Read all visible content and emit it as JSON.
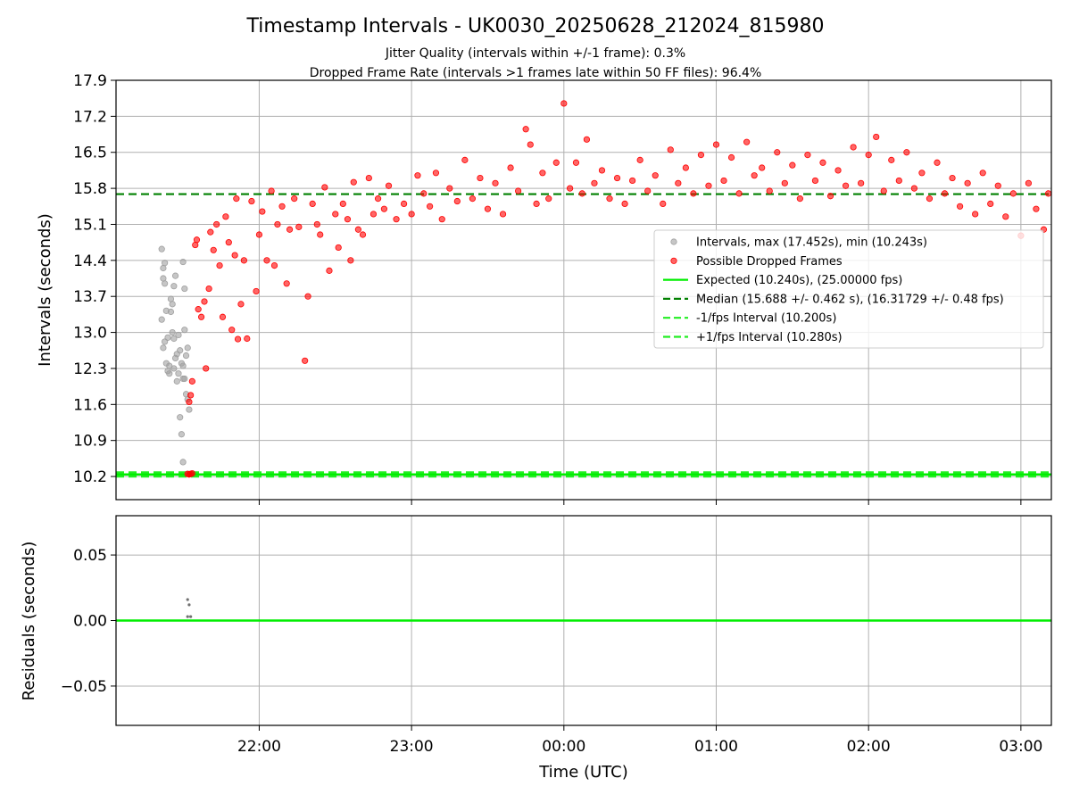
{
  "title": "Timestamp Intervals - UK0030_20250628_212024_815980",
  "subtitle_1": "Jitter Quality (intervals within +/-1 frame): 0.3%",
  "subtitle_2": "Dropped Frame Rate (intervals >1 frames late within 50 FF files): 96.4%",
  "colors": {
    "intervals": "#a0a0a0",
    "dropped": "#ff0000",
    "expected": "#00ee00",
    "median": "#008000",
    "fps_bounds": "#22ee22",
    "residual_points": "#707070",
    "grid": "#b0b0b0"
  },
  "chart_data": [
    {
      "type": "scatter",
      "panel": "intervals",
      "ylabel": "Intervals (seconds)",
      "xlabel": "",
      "ylim": [
        9.75,
        17.9
      ],
      "xlim_hours": [
        21.06,
        27.2
      ],
      "y_ticks": [
        "17.9",
        "17.2",
        "16.5",
        "15.8",
        "15.1",
        "14.4",
        "13.7",
        "13.0",
        "12.3",
        "11.6",
        "10.9",
        "10.2"
      ],
      "y_tick_values": [
        17.9,
        17.2,
        16.5,
        15.8,
        15.1,
        14.4,
        13.7,
        13.0,
        12.3,
        11.6,
        10.9,
        10.2
      ],
      "x_ticks": [
        "22:00",
        "23:00",
        "00:00",
        "01:00",
        "02:00",
        "03:00"
      ],
      "x_tick_hours": [
        22,
        23,
        24,
        25,
        26,
        27
      ],
      "grid": true,
      "legend_position": "center-right",
      "legend": [
        {
          "label": "Intervals, max (17.452s), min (10.243s)",
          "style": "marker",
          "color_key": "intervals"
        },
        {
          "label": "Possible Dropped Frames",
          "style": "marker",
          "color_key": "dropped"
        },
        {
          "label": "Expected (10.240s), (25.00000 fps)",
          "style": "solid",
          "color_key": "expected"
        },
        {
          "label": "Median (15.688 +/- 0.462 s), (16.31729 +/- 0.48 fps)",
          "style": "dashed",
          "color_key": "median"
        },
        {
          "label": "-1/fps Interval (10.200s)",
          "style": "dashed",
          "color_key": "fps_bounds"
        },
        {
          "label": "+1/fps Interval (10.280s)",
          "style": "dashed",
          "color_key": "fps_bounds"
        }
      ],
      "reference_lines": {
        "expected": 10.24,
        "median": 15.688,
        "minus_1fps": 10.2,
        "plus_1fps": 10.28
      },
      "series": [
        {
          "name": "Intervals, max (17.452s), min (10.243s)",
          "color_key": "intervals",
          "points": [
            [
              21.36,
              14.62
            ],
            [
              21.37,
              14.25
            ],
            [
              21.38,
              14.35
            ],
            [
              21.37,
              14.05
            ],
            [
              21.38,
              13.95
            ],
            [
              21.36,
              13.25
            ],
            [
              21.39,
              13.42
            ],
            [
              21.38,
              12.82
            ],
            [
              21.4,
              12.9
            ],
            [
              21.37,
              12.7
            ],
            [
              21.39,
              12.4
            ],
            [
              21.4,
              12.25
            ],
            [
              21.41,
              12.2
            ],
            [
              21.42,
              13.65
            ],
            [
              21.43,
              13.55
            ],
            [
              21.42,
              13.4
            ],
            [
              21.43,
              13.0
            ],
            [
              21.44,
              12.88
            ],
            [
              21.45,
              12.5
            ],
            [
              21.44,
              12.3
            ],
            [
              21.46,
              12.58
            ],
            [
              21.45,
              14.1
            ],
            [
              21.44,
              13.9
            ],
            [
              21.47,
              12.2
            ],
            [
              21.48,
              11.35
            ],
            [
              21.47,
              12.95
            ],
            [
              21.48,
              12.65
            ],
            [
              21.49,
              12.4
            ],
            [
              21.5,
              12.35
            ],
            [
              21.5,
              12.1
            ],
            [
              21.51,
              13.05
            ],
            [
              21.51,
              12.1
            ],
            [
              21.52,
              11.8
            ],
            [
              21.53,
              11.7
            ],
            [
              21.54,
              11.5
            ],
            [
              21.5,
              14.37
            ],
            [
              21.51,
              13.85
            ],
            [
              21.53,
              12.7
            ],
            [
              21.52,
              12.55
            ],
            [
              21.49,
              11.02
            ],
            [
              21.5,
              10.48
            ],
            [
              21.53,
              10.25
            ],
            [
              21.55,
              10.25
            ],
            [
              21.41,
              12.35
            ],
            [
              21.46,
              12.05
            ]
          ]
        },
        {
          "name": "Possible Dropped Frames",
          "color_key": "dropped",
          "points": [
            [
              21.53,
              10.25
            ],
            [
              21.54,
              10.24
            ],
            [
              21.55,
              10.25
            ],
            [
              21.56,
              10.26
            ],
            [
              21.54,
              11.65
            ],
            [
              21.55,
              11.78
            ],
            [
              21.56,
              12.05
            ],
            [
              21.58,
              14.7
            ],
            [
              21.59,
              14.8
            ],
            [
              21.6,
              13.45
            ],
            [
              21.62,
              13.3
            ],
            [
              21.65,
              12.3
            ],
            [
              21.64,
              13.6
            ],
            [
              21.67,
              13.85
            ],
            [
              21.68,
              14.95
            ],
            [
              21.7,
              14.6
            ],
            [
              21.72,
              15.1
            ],
            [
              21.74,
              14.3
            ],
            [
              21.76,
              13.3
            ],
            [
              21.78,
              15.25
            ],
            [
              21.8,
              14.75
            ],
            [
              21.82,
              13.05
            ],
            [
              21.84,
              14.5
            ],
            [
              21.85,
              15.6
            ],
            [
              21.86,
              12.87
            ],
            [
              21.88,
              13.55
            ],
            [
              21.9,
              14.4
            ],
            [
              21.92,
              12.88
            ],
            [
              21.95,
              15.55
            ],
            [
              21.98,
              13.8
            ],
            [
              22.0,
              14.9
            ],
            [
              22.02,
              15.35
            ],
            [
              22.05,
              14.4
            ],
            [
              22.08,
              15.75
            ],
            [
              22.1,
              14.3
            ],
            [
              22.12,
              15.1
            ],
            [
              22.15,
              15.45
            ],
            [
              22.18,
              13.95
            ],
            [
              22.2,
              15.0
            ],
            [
              22.23,
              15.6
            ],
            [
              22.26,
              15.05
            ],
            [
              22.3,
              12.45
            ],
            [
              22.32,
              13.7
            ],
            [
              22.35,
              15.5
            ],
            [
              22.38,
              15.1
            ],
            [
              22.4,
              14.9
            ],
            [
              22.43,
              15.82
            ],
            [
              22.46,
              14.2
            ],
            [
              22.5,
              15.3
            ],
            [
              22.52,
              14.65
            ],
            [
              22.55,
              15.5
            ],
            [
              22.58,
              15.2
            ],
            [
              22.6,
              14.4
            ],
            [
              22.62,
              15.92
            ],
            [
              22.65,
              15.0
            ],
            [
              22.68,
              14.9
            ],
            [
              22.72,
              16.0
            ],
            [
              22.75,
              15.3
            ],
            [
              22.78,
              15.6
            ],
            [
              22.82,
              15.4
            ],
            [
              22.85,
              15.85
            ],
            [
              22.9,
              15.2
            ],
            [
              22.95,
              15.5
            ],
            [
              23.0,
              15.3
            ],
            [
              23.04,
              16.05
            ],
            [
              23.08,
              15.7
            ],
            [
              23.12,
              15.45
            ],
            [
              23.16,
              16.1
            ],
            [
              23.2,
              15.2
            ],
            [
              23.25,
              15.8
            ],
            [
              23.3,
              15.55
            ],
            [
              23.35,
              16.35
            ],
            [
              23.4,
              15.6
            ],
            [
              23.45,
              16.0
            ],
            [
              23.5,
              15.4
            ],
            [
              23.55,
              15.9
            ],
            [
              23.6,
              15.3
            ],
            [
              23.65,
              16.2
            ],
            [
              23.7,
              15.75
            ],
            [
              23.75,
              16.95
            ],
            [
              23.78,
              16.65
            ],
            [
              23.82,
              15.5
            ],
            [
              23.86,
              16.1
            ],
            [
              23.9,
              15.6
            ],
            [
              23.95,
              16.3
            ],
            [
              24.0,
              17.45
            ],
            [
              24.04,
              15.8
            ],
            [
              24.08,
              16.3
            ],
            [
              24.12,
              15.7
            ],
            [
              24.15,
              16.75
            ],
            [
              24.2,
              15.9
            ],
            [
              24.25,
              16.15
            ],
            [
              24.3,
              15.6
            ],
            [
              24.35,
              16.0
            ],
            [
              24.4,
              15.5
            ],
            [
              24.45,
              15.95
            ],
            [
              24.5,
              16.35
            ],
            [
              24.55,
              15.75
            ],
            [
              24.6,
              16.05
            ],
            [
              24.65,
              15.5
            ],
            [
              24.7,
              16.55
            ],
            [
              24.75,
              15.9
            ],
            [
              24.8,
              16.2
            ],
            [
              24.85,
              15.7
            ],
            [
              24.9,
              16.45
            ],
            [
              24.95,
              15.85
            ],
            [
              25.0,
              16.65
            ],
            [
              25.05,
              15.95
            ],
            [
              25.1,
              16.4
            ],
            [
              25.15,
              15.7
            ],
            [
              25.2,
              16.7
            ],
            [
              25.25,
              16.05
            ],
            [
              25.3,
              16.2
            ],
            [
              25.35,
              15.75
            ],
            [
              25.4,
              16.5
            ],
            [
              25.45,
              15.9
            ],
            [
              25.5,
              16.25
            ],
            [
              25.55,
              15.6
            ],
            [
              25.6,
              16.45
            ],
            [
              25.65,
              15.95
            ],
            [
              25.7,
              16.3
            ],
            [
              25.75,
              15.65
            ],
            [
              25.8,
              16.15
            ],
            [
              25.85,
              15.85
            ],
            [
              25.9,
              16.6
            ],
            [
              25.95,
              15.9
            ],
            [
              26.0,
              16.45
            ],
            [
              26.05,
              16.8
            ],
            [
              26.1,
              15.75
            ],
            [
              26.15,
              16.35
            ],
            [
              26.2,
              15.95
            ],
            [
              26.25,
              16.5
            ],
            [
              26.3,
              15.8
            ],
            [
              26.35,
              16.1
            ],
            [
              26.4,
              15.6
            ],
            [
              26.45,
              16.3
            ],
            [
              26.5,
              15.7
            ],
            [
              26.55,
              16.0
            ],
            [
              26.6,
              15.45
            ],
            [
              26.65,
              15.9
            ],
            [
              26.7,
              15.3
            ],
            [
              26.75,
              16.1
            ],
            [
              26.8,
              15.5
            ],
            [
              26.85,
              15.85
            ],
            [
              26.9,
              15.25
            ],
            [
              26.95,
              15.7
            ],
            [
              27.0,
              14.88
            ],
            [
              27.05,
              15.9
            ],
            [
              27.1,
              15.4
            ],
            [
              27.15,
              15.0
            ],
            [
              27.18,
              15.7
            ]
          ]
        }
      ]
    },
    {
      "type": "scatter",
      "panel": "residuals",
      "ylabel": "Residuals (seconds)",
      "xlabel": "Time (UTC)",
      "ylim": [
        -0.08,
        0.08
      ],
      "xlim_hours": [
        21.06,
        27.2
      ],
      "y_ticks": [
        "0.05",
        "0.00",
        "−0.05"
      ],
      "y_tick_values": [
        0.05,
        0.0,
        -0.05
      ],
      "x_ticks": [
        "22:00",
        "23:00",
        "00:00",
        "01:00",
        "02:00",
        "03:00"
      ],
      "x_tick_hours": [
        22,
        23,
        24,
        25,
        26,
        27
      ],
      "grid": true,
      "reference_lines": {
        "zero": 0.0
      },
      "series": [
        {
          "name": "",
          "color_key": "residual_points",
          "points": [
            [
              21.53,
              0.016
            ],
            [
              21.54,
              0.012
            ],
            [
              21.53,
              0.003
            ],
            [
              21.55,
              0.003
            ]
          ]
        }
      ]
    }
  ]
}
